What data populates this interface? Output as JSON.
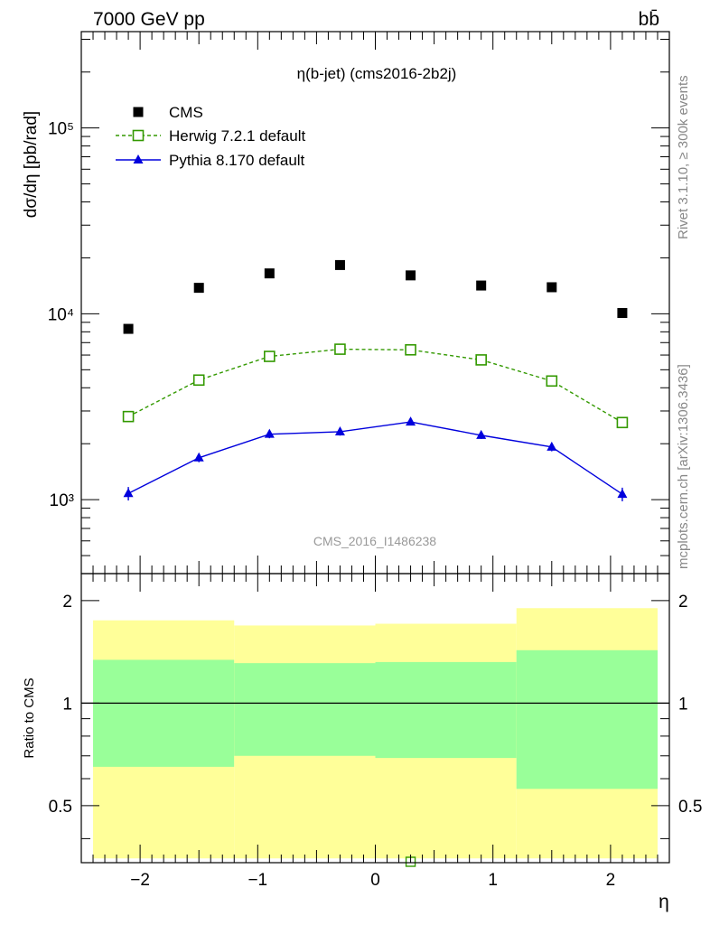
{
  "header": {
    "energy_label": "7000 GeV pp",
    "process_label": "bb̄"
  },
  "side_labels": {
    "rivet": "Rivet 3.1.10, ≥ 300k events",
    "mcplots": "mcplots.cern.ch [arXiv:1306.3436]"
  },
  "chart_data": [
    {
      "type": "scatter",
      "title": "η(b-jet) (cms2016-2b2j)",
      "watermark": "CMS_2016_I1486238",
      "ylabel": "dσ/dη [pb/rad]",
      "xlabel": "η",
      "xlim": [
        -2.5,
        2.5
      ],
      "ylim": [
        400,
        330000
      ],
      "yscale": "log",
      "y_tick_labels": [
        "10³",
        "10⁴",
        "10⁵"
      ],
      "x_tick_labels": [
        "−2",
        "−1",
        "0",
        "1",
        "2"
      ],
      "legend_position": "top-left",
      "x": [
        -2.1,
        -1.5,
        -0.9,
        -0.3,
        0.3,
        0.9,
        1.5,
        2.1
      ],
      "series": [
        {
          "name": "CMS",
          "color": "#000000",
          "marker": "filled-square",
          "line": "none",
          "values": [
            8300,
            13800,
            16500,
            18300,
            16100,
            14200,
            13900,
            10100
          ]
        },
        {
          "name": "Herwig 7.2.1 default",
          "color": "#339900",
          "marker": "open-square",
          "line": "dashed",
          "values": [
            2800,
            4400,
            5900,
            6450,
            6400,
            5650,
            4350,
            2600
          ],
          "errors": [
            50,
            60,
            70,
            70,
            70,
            70,
            60,
            50
          ]
        },
        {
          "name": "Pythia 8.170 default",
          "color": "#0000dd",
          "marker": "filled-triangle",
          "line": "solid",
          "values": [
            1080,
            1680,
            2250,
            2320,
            2620,
            2220,
            1920,
            1070
          ],
          "errors": [
            90,
            90,
            110,
            110,
            110,
            100,
            100,
            90
          ]
        }
      ]
    },
    {
      "type": "area",
      "ylabel": "Ratio to CMS",
      "xlabel": "η",
      "xlim": [
        -2.5,
        2.5
      ],
      "ylim": [
        0.34,
        2.4
      ],
      "y_tick_labels": [
        "0.5",
        "1",
        "2"
      ],
      "reference_line": 1,
      "bands": [
        {
          "x_from": -2.4,
          "x_to": -1.2,
          "yellow": [
            0.35,
            1.75
          ],
          "green": [
            0.65,
            1.34
          ]
        },
        {
          "x_from": -1.2,
          "x_to": 0.0,
          "yellow": [
            0.35,
            1.69
          ],
          "green": [
            0.7,
            1.31
          ]
        },
        {
          "x_from": 0.0,
          "x_to": 1.2,
          "yellow": [
            0.35,
            1.71
          ],
          "green": [
            0.69,
            1.32
          ]
        },
        {
          "x_from": 1.2,
          "x_to": 2.4,
          "yellow": [
            0.35,
            1.9
          ],
          "green": [
            0.56,
            1.43
          ]
        }
      ],
      "band_colors": {
        "yellow": "#ffff99",
        "green": "#99ff99"
      },
      "offscale_marker": {
        "series": "Herwig 7.2.1 default",
        "x": 0.3,
        "y": 0.34
      }
    }
  ]
}
